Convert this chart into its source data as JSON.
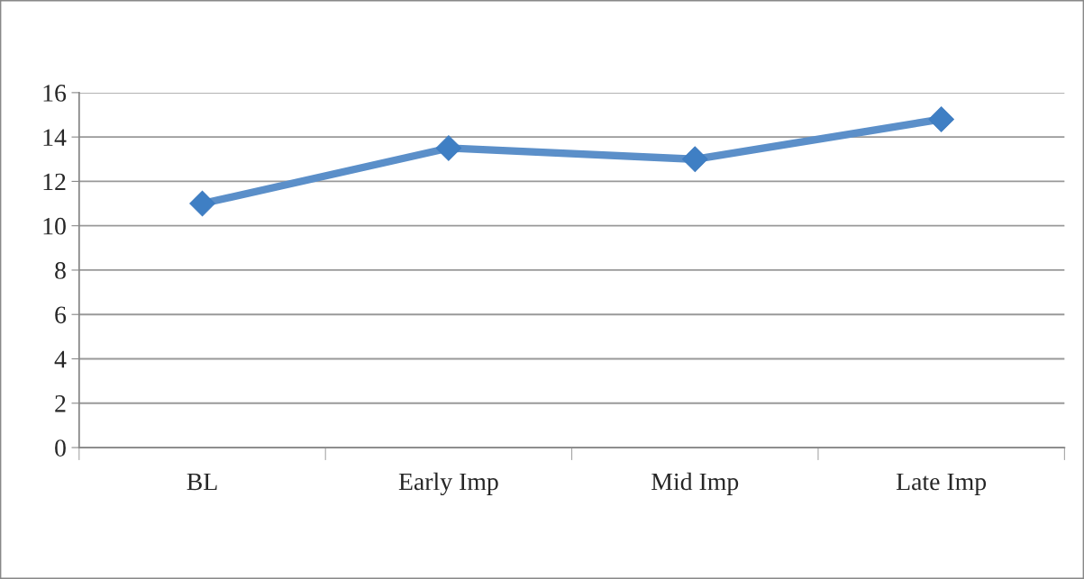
{
  "chart_data": {
    "type": "line",
    "categories": [
      "BL",
      "Early Imp",
      "Mid Imp",
      "Late Imp"
    ],
    "series": [
      {
        "color": "#5b8fc9",
        "values": [
          11,
          13.5,
          13,
          14.8
        ]
      }
    ],
    "ylim": [
      0,
      16
    ],
    "yticks": [
      0,
      2,
      4,
      6,
      8,
      10,
      12,
      14,
      16
    ],
    "grid": "y",
    "marker": "diamond",
    "line_style": "solid",
    "legend": false
  }
}
